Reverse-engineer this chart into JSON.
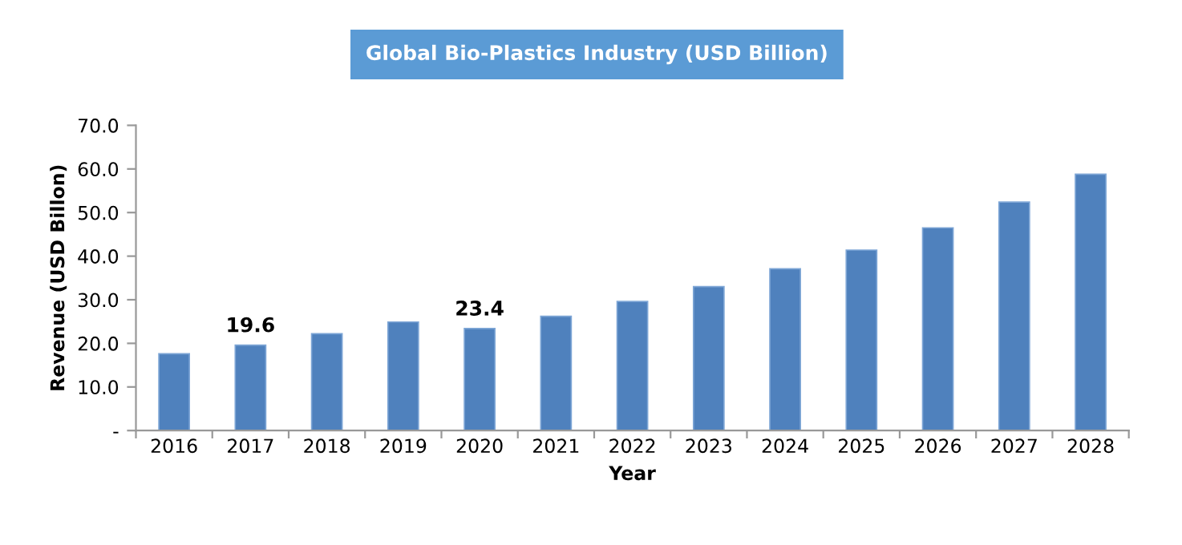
{
  "chart_data": {
    "type": "bar",
    "title": "Global Bio-Plastics Industry (USD Billion)",
    "xlabel": "Year",
    "ylabel": "Revenue (USD Billon)",
    "categories": [
      "2016",
      "2017",
      "2018",
      "2019",
      "2020",
      "2021",
      "2022",
      "2023",
      "2024",
      "2025",
      "2026",
      "2027",
      "2028"
    ],
    "values": [
      17.6,
      19.6,
      22.2,
      24.9,
      23.4,
      26.2,
      29.6,
      33.0,
      37.1,
      41.4,
      46.5,
      52.4,
      58.8
    ],
    "value_labels": [
      null,
      "19.6",
      null,
      null,
      "23.4",
      null,
      null,
      null,
      null,
      null,
      null,
      null,
      null
    ],
    "color": "#4f81bd",
    "ylim": [
      0,
      70
    ],
    "yticks": [
      {
        "value": 0,
        "label": "-"
      },
      {
        "value": 10,
        "label": "10.0"
      },
      {
        "value": 20,
        "label": "20.0"
      },
      {
        "value": 30,
        "label": "30.0"
      },
      {
        "value": 40,
        "label": "40.0"
      },
      {
        "value": 50,
        "label": "50.0"
      },
      {
        "value": 60,
        "label": "60.0"
      },
      {
        "value": 70,
        "label": "70.0"
      }
    ],
    "grid": false
  }
}
